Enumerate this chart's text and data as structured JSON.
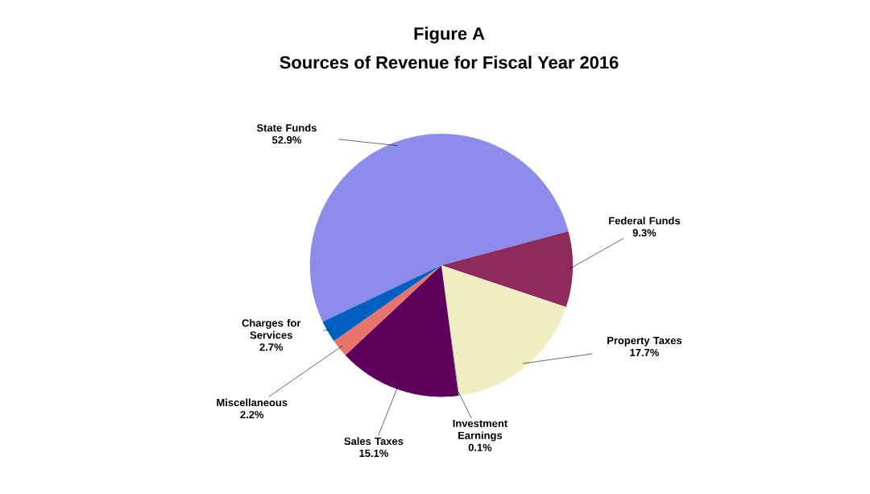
{
  "chart_data": {
    "type": "pie",
    "title": "Figure A",
    "subtitle": "Sources of Revenue for Fiscal Year 2016",
    "categories": [
      "State Funds",
      "Federal Funds",
      "Property Taxes",
      "Investment Earnings",
      "Sales Taxes",
      "Miscellaneous",
      "Charges for Services"
    ],
    "values": [
      52.9,
      9.3,
      17.7,
      0.1,
      15.1,
      2.2,
      2.7
    ],
    "colors": [
      "#8c8ced",
      "#8e2a5c",
      "#eeeec2",
      "#7f7f7f",
      "#5c005c",
      "#e8746c",
      "#0060c0"
    ],
    "value_labels": [
      "52.9%",
      "9.3%",
      "17.7%",
      "0.1%",
      "15.1%",
      "2.2%",
      "2.7%"
    ]
  }
}
